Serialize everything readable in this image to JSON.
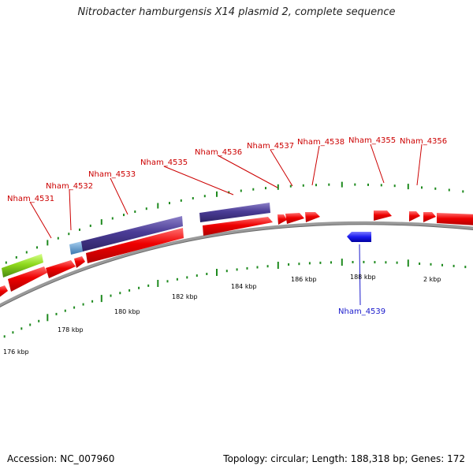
{
  "title": "Nitrobacter hamburgensis X14 plasmid 2, complete sequence",
  "footer": {
    "accession_text": "Accession: NC_007960",
    "stats_text": "Topology: circular; Length: 188,318 bp; Genes: 172"
  },
  "colors": {
    "forward_gene": "#ee0000",
    "reverse_gene": "#1a1aee",
    "purple_feature": "#4b3c96",
    "lightblue_feature": "#4a90c8",
    "lime_feature": "#8ed81c",
    "backbone": "#8a8a8a",
    "tick": "#1e8a1e",
    "label_forward": "#cc0000",
    "label_reverse": "#1a1acc"
  },
  "gene_labels": [
    {
      "text": "Nham_4531",
      "strand": "forward"
    },
    {
      "text": "Nham_4532",
      "strand": "forward"
    },
    {
      "text": "Nham_4533",
      "strand": "forward"
    },
    {
      "text": "Nham_4535",
      "strand": "forward"
    },
    {
      "text": "Nham_4536",
      "strand": "forward"
    },
    {
      "text": "Nham_4537",
      "strand": "forward"
    },
    {
      "text": "Nham_4538",
      "strand": "forward"
    },
    {
      "text": "Nham_4355",
      "strand": "forward"
    },
    {
      "text": "Nham_4356",
      "strand": "forward"
    },
    {
      "text": "Nham_4539",
      "strand": "reverse"
    }
  ],
  "scale_labels": [
    "176 kbp",
    "178 kbp",
    "180 kbp",
    "182 kbp",
    "184 kbp",
    "186 kbp",
    "188 kbp",
    "2 kbp"
  ]
}
